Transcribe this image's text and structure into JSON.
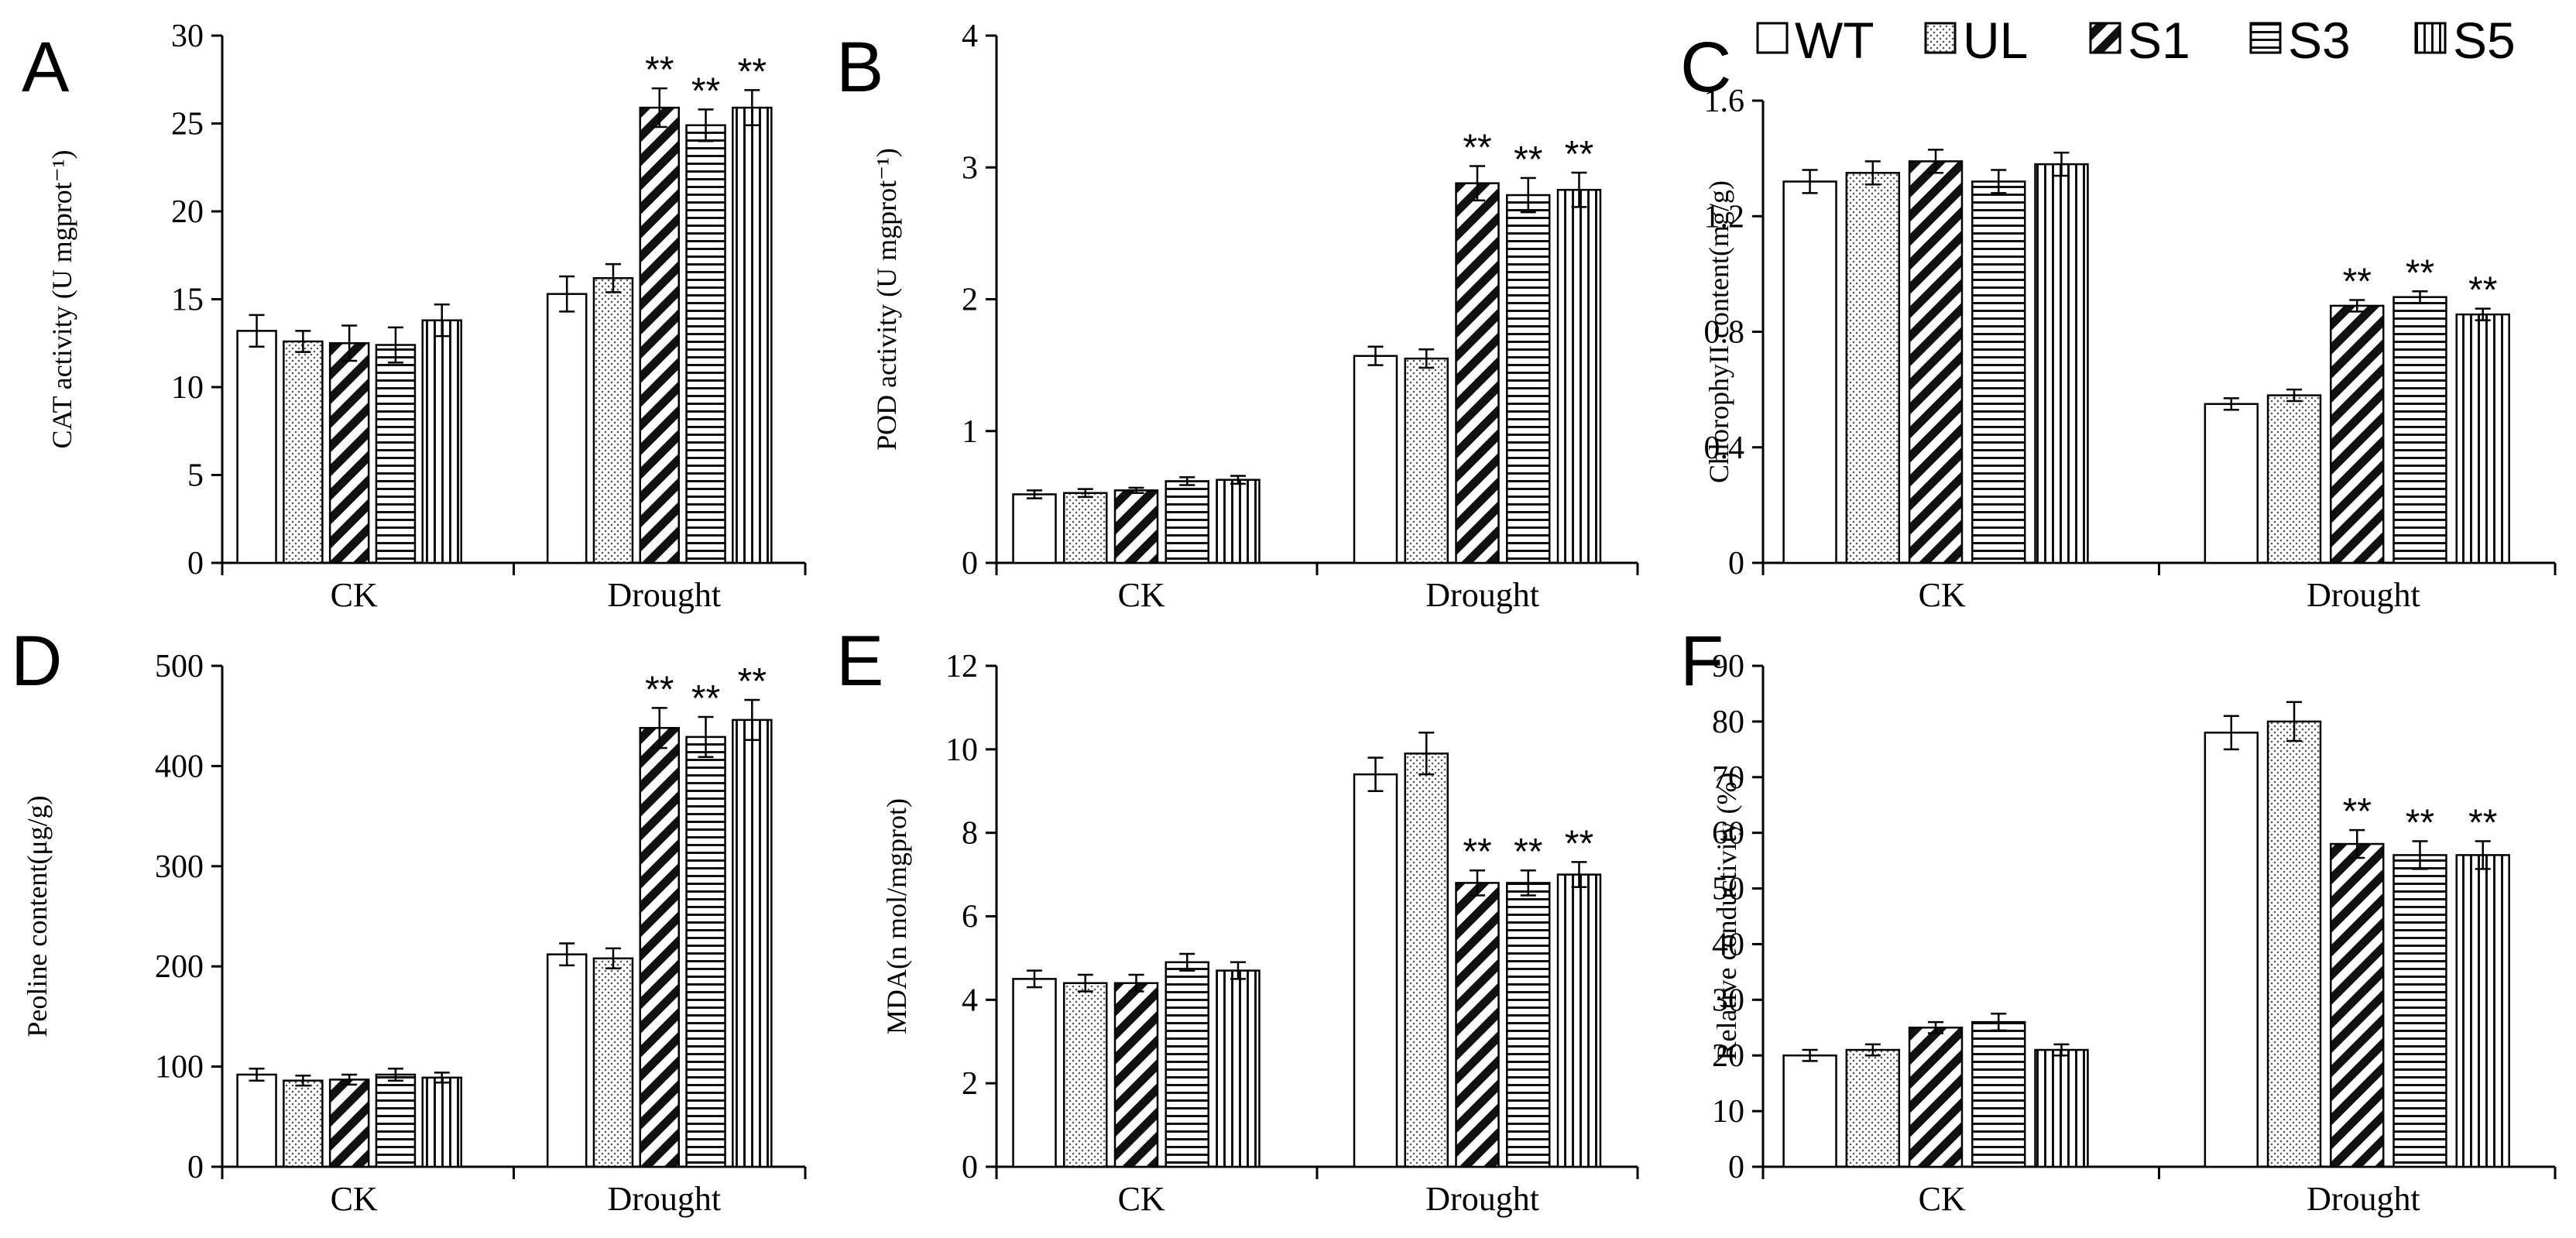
{
  "legend": {
    "items": [
      {
        "label": "WT",
        "pattern": "blank"
      },
      {
        "label": "UL",
        "pattern": "dots"
      },
      {
        "label": "S1",
        "pattern": "diagonal"
      },
      {
        "label": "S3",
        "pattern": "horizontal"
      },
      {
        "label": "S5",
        "pattern": "vertical"
      }
    ]
  },
  "chart_data": [
    {
      "type": "bar",
      "panel": "A",
      "ylabel": "CAT activity (U mgprot⁻¹)",
      "ylim": [
        0,
        30
      ],
      "yticks": [
        0,
        5,
        10,
        15,
        20,
        25,
        30
      ],
      "categories": [
        "CK",
        "Drought"
      ],
      "series": [
        {
          "name": "WT",
          "values": [
            13.2,
            15.3
          ],
          "errors": [
            0.9,
            1.0
          ]
        },
        {
          "name": "UL",
          "values": [
            12.6,
            16.2
          ],
          "errors": [
            0.6,
            0.8
          ]
        },
        {
          "name": "S1",
          "values": [
            12.5,
            25.9
          ],
          "errors": [
            1.0,
            1.1
          ]
        },
        {
          "name": "S3",
          "values": [
            12.4,
            24.9
          ],
          "errors": [
            1.0,
            0.9
          ]
        },
        {
          "name": "S5",
          "values": [
            13.8,
            25.9
          ],
          "errors": [
            0.9,
            1.0
          ]
        }
      ],
      "significance": [
        [
          "",
          "",
          "",
          "",
          ""
        ],
        [
          "",
          "",
          "**",
          "**",
          "**"
        ]
      ]
    },
    {
      "type": "bar",
      "panel": "B",
      "ylabel": "POD activity (U mgprot⁻¹)",
      "ylim": [
        0,
        4
      ],
      "yticks": [
        0,
        1,
        2,
        3,
        4
      ],
      "categories": [
        "CK",
        "Drought"
      ],
      "series": [
        {
          "name": "WT",
          "values": [
            0.52,
            1.57
          ],
          "errors": [
            0.03,
            0.07
          ]
        },
        {
          "name": "UL",
          "values": [
            0.53,
            1.55
          ],
          "errors": [
            0.03,
            0.07
          ]
        },
        {
          "name": "S1",
          "values": [
            0.55,
            2.88
          ],
          "errors": [
            0.02,
            0.13
          ]
        },
        {
          "name": "S3",
          "values": [
            0.62,
            2.79
          ],
          "errors": [
            0.03,
            0.13
          ]
        },
        {
          "name": "S5",
          "values": [
            0.63,
            2.83
          ],
          "errors": [
            0.03,
            0.13
          ]
        }
      ],
      "significance": [
        [
          "",
          "",
          "",
          "",
          ""
        ],
        [
          "",
          "",
          "**",
          "**",
          "**"
        ]
      ]
    },
    {
      "type": "bar",
      "panel": "C",
      "ylabel": "ChlorophyII content(mg/g)",
      "ylim": [
        0,
        1.6
      ],
      "yticks": [
        0,
        0.4,
        0.8,
        1.2,
        1.6
      ],
      "categories": [
        "CK",
        "Drought"
      ],
      "series": [
        {
          "name": "WT",
          "values": [
            1.32,
            0.55
          ],
          "errors": [
            0.04,
            0.02
          ]
        },
        {
          "name": "UL",
          "values": [
            1.35,
            0.58
          ],
          "errors": [
            0.04,
            0.02
          ]
        },
        {
          "name": "S1",
          "values": [
            1.39,
            0.89
          ],
          "errors": [
            0.04,
            0.02
          ]
        },
        {
          "name": "S3",
          "values": [
            1.32,
            0.92
          ],
          "errors": [
            0.04,
            0.02
          ]
        },
        {
          "name": "S5",
          "values": [
            1.38,
            0.86
          ],
          "errors": [
            0.04,
            0.02
          ]
        }
      ],
      "significance": [
        [
          "",
          "",
          "",
          "",
          ""
        ],
        [
          "",
          "",
          "**",
          "**",
          "**"
        ]
      ]
    },
    {
      "type": "bar",
      "panel": "D",
      "ylabel": "Peoline content(μg/g)",
      "ylim": [
        0,
        500
      ],
      "yticks": [
        0,
        100,
        200,
        300,
        400,
        500
      ],
      "categories": [
        "CK",
        "Drought"
      ],
      "series": [
        {
          "name": "WT",
          "values": [
            92,
            212
          ],
          "errors": [
            6,
            11
          ]
        },
        {
          "name": "UL",
          "values": [
            86,
            208
          ],
          "errors": [
            5,
            10
          ]
        },
        {
          "name": "S1",
          "values": [
            87,
            438
          ],
          "errors": [
            5,
            20
          ]
        },
        {
          "name": "S3",
          "values": [
            92,
            429
          ],
          "errors": [
            6,
            20
          ]
        },
        {
          "name": "S5",
          "values": [
            89,
            446
          ],
          "errors": [
            5,
            20
          ]
        }
      ],
      "significance": [
        [
          "",
          "",
          "",
          "",
          ""
        ],
        [
          "",
          "",
          "**",
          "**",
          "**"
        ]
      ]
    },
    {
      "type": "bar",
      "panel": "E",
      "ylabel": "MDA(n mol/mgprot)",
      "ylim": [
        0,
        12
      ],
      "yticks": [
        0,
        2,
        4,
        6,
        8,
        10,
        12
      ],
      "categories": [
        "CK",
        "Drought"
      ],
      "series": [
        {
          "name": "WT",
          "values": [
            4.5,
            9.4
          ],
          "errors": [
            0.2,
            0.4
          ]
        },
        {
          "name": "UL",
          "values": [
            4.4,
            9.9
          ],
          "errors": [
            0.2,
            0.5
          ]
        },
        {
          "name": "S1",
          "values": [
            4.4,
            6.8
          ],
          "errors": [
            0.2,
            0.3
          ]
        },
        {
          "name": "S3",
          "values": [
            4.9,
            6.8
          ],
          "errors": [
            0.2,
            0.3
          ]
        },
        {
          "name": "S5",
          "values": [
            4.7,
            7.0
          ],
          "errors": [
            0.2,
            0.3
          ]
        }
      ],
      "significance": [
        [
          "",
          "",
          "",
          "",
          ""
        ],
        [
          "",
          "",
          "**",
          "**",
          "**"
        ]
      ]
    },
    {
      "type": "bar",
      "panel": "F",
      "ylabel": "Relative conductivity (%)",
      "ylim": [
        0,
        90
      ],
      "yticks": [
        0,
        10,
        20,
        30,
        40,
        50,
        60,
        70,
        80,
        90
      ],
      "categories": [
        "CK",
        "Drought"
      ],
      "series": [
        {
          "name": "WT",
          "values": [
            20,
            78
          ],
          "errors": [
            1,
            3
          ]
        },
        {
          "name": "UL",
          "values": [
            21,
            80
          ],
          "errors": [
            1,
            3.5
          ]
        },
        {
          "name": "S1",
          "values": [
            25,
            58
          ],
          "errors": [
            1,
            2.5
          ]
        },
        {
          "name": "S3",
          "values": [
            26,
            56
          ],
          "errors": [
            1.5,
            2.5
          ]
        },
        {
          "name": "S5",
          "values": [
            21,
            56
          ],
          "errors": [
            1,
            2.5
          ]
        }
      ],
      "significance": [
        [
          "",
          "",
          "",
          "",
          ""
        ],
        [
          "",
          "",
          "**",
          "**",
          "**"
        ]
      ]
    }
  ]
}
